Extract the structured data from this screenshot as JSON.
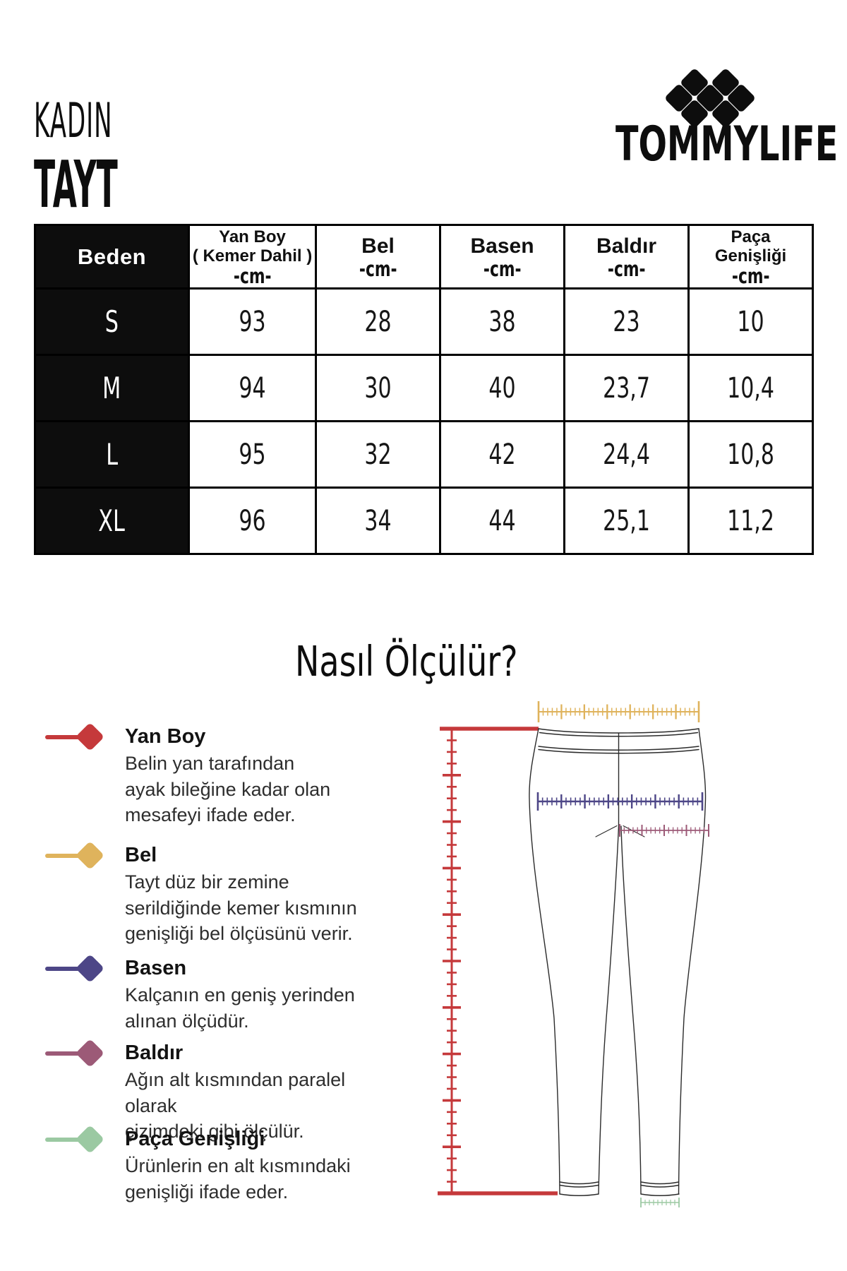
{
  "header": {
    "category": "KADIN",
    "product": "TAYT",
    "brand": "TOMMYLIFE"
  },
  "colors": {
    "yan_boy": "#c5393b",
    "bel": "#dfb35c",
    "basen": "#4d4687",
    "baldir": "#9c5a77",
    "paca": "#9bc9a2",
    "ink": "#0d0d0d",
    "outline": "#2b2b2b"
  },
  "size_table": {
    "size_column_header": "Beden",
    "columns": [
      {
        "title": "Yan Boy",
        "subtitle": "( Kemer Dahil )",
        "unit": "-cm-"
      },
      {
        "title": "Bel",
        "unit": "-cm-"
      },
      {
        "title": "Basen",
        "unit": "-cm-"
      },
      {
        "title": "Baldır",
        "unit": "-cm-"
      },
      {
        "title": "Paça",
        "subtitle": "Genişliği",
        "unit": "-cm-"
      }
    ],
    "rows": [
      {
        "size": "S",
        "values": [
          "93",
          "28",
          "38",
          "23",
          "10"
        ]
      },
      {
        "size": "M",
        "values": [
          "94",
          "30",
          "40",
          "23,7",
          "10,4"
        ]
      },
      {
        "size": "L",
        "values": [
          "95",
          "32",
          "42",
          "24,4",
          "10,8"
        ]
      },
      {
        "size": "XL",
        "values": [
          "96",
          "34",
          "44",
          "25,1",
          "11,2"
        ]
      }
    ]
  },
  "how_to_measure": {
    "title": "Nasıl Ölçülür?",
    "legend": [
      {
        "name": "Yan Boy",
        "lines": [
          "Belin yan tarafından",
          "ayak bileğine kadar olan",
          "mesafeyi ifade eder."
        ]
      },
      {
        "name": "Bel",
        "lines": [
          "Tayt düz bir zemine",
          "serildiğinde kemer kısmının",
          "genişliği bel ölçüsünü verir."
        ]
      },
      {
        "name": "Basen",
        "lines": [
          "Kalçanın en geniş yerinden",
          "alınan ölçüdür."
        ]
      },
      {
        "name": "Baldır",
        "lines": [
          "Ağın alt kısmından paralel olarak",
          "çizimdeki gibi ölçülür."
        ]
      },
      {
        "name": "Paça Genişliği",
        "lines": [
          "Ürünlerin en alt kısmındaki",
          "genişliği ifade eder."
        ]
      }
    ]
  }
}
